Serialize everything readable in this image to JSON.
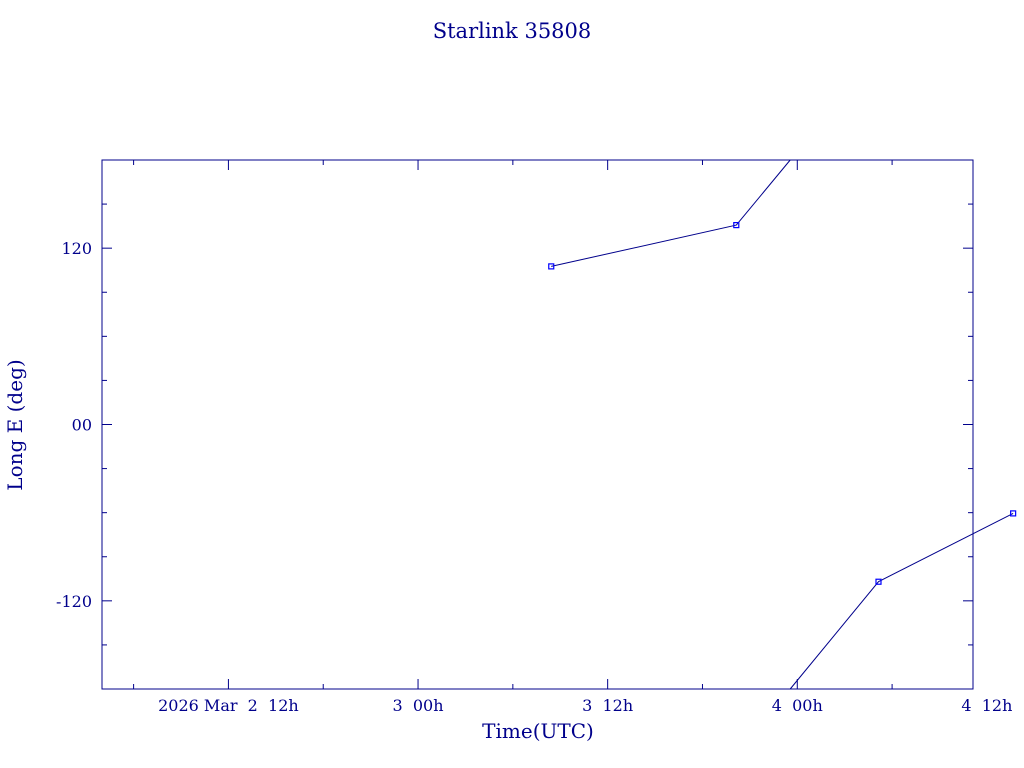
{
  "chart_data": {
    "type": "line",
    "title": "Starlink 35808",
    "xlabel": "Time(UTC)",
    "ylabel": "Long E (deg)",
    "x_unit": "hours",
    "xlim": [
      0,
      55.12
    ],
    "ylim": [
      -180,
      180
    ],
    "grid": false,
    "legend": "none",
    "x_ticks": [
      {
        "value": 8,
        "label": "2026 Mar  2  12h"
      },
      {
        "value": 20,
        "label": "3  00h"
      },
      {
        "value": 32,
        "label": "3  12h"
      },
      {
        "value": 44,
        "label": "4  00h"
      },
      {
        "value": 56,
        "label": "4  12h"
      }
    ],
    "y_ticks": [
      {
        "value": 120,
        "label": "120"
      },
      {
        "value": 0,
        "label": "00"
      },
      {
        "value": -120,
        "label": "-120"
      }
    ],
    "series": [
      {
        "segments": [
          [
            {
              "x": 28.43,
              "y": 107.6,
              "marker": true
            },
            {
              "x": 40.14,
              "y": 135.7,
              "marker": true
            },
            {
              "x": 43.55,
              "y": 180,
              "marker": false
            }
          ],
          [
            {
              "x": 43.55,
              "y": -180,
              "marker": false
            },
            {
              "x": 49.14,
              "y": -107.0,
              "marker": true
            },
            {
              "x": 57.66,
              "y": -60.5,
              "marker": true
            }
          ]
        ]
      }
    ],
    "colors": {
      "axis": "#00008b",
      "line": "#00008b",
      "marker": "#0000ff"
    }
  }
}
